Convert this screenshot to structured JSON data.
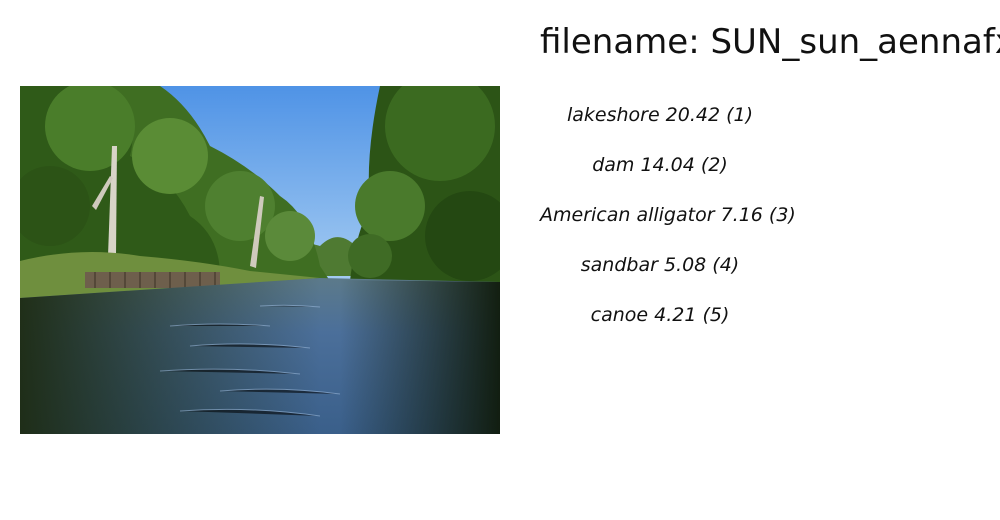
{
  "title": "filename: SUN_sun_aennafxu",
  "photo": {
    "icon": "bayou-scene-photo"
  },
  "predictions": [
    {
      "label": "lakeshore 20.42 (1)"
    },
    {
      "label": "dam 14.04 (2)"
    },
    {
      "label": "American alligator  7.16 (3)"
    },
    {
      "label": "sandbar  5.08 (4)"
    },
    {
      "label": "canoe  4.21 (5)"
    }
  ]
}
